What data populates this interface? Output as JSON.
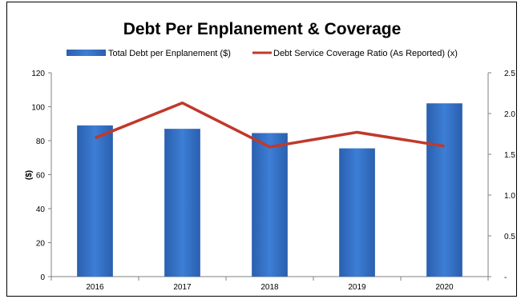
{
  "chart_data": {
    "type": "bar",
    "title": "Debt Per Enplanement & Coverage",
    "categories": [
      "2016",
      "2017",
      "2018",
      "2019",
      "2020"
    ],
    "series": [
      {
        "name": "Total Debt per Enplanement ($)",
        "type": "bar",
        "axis": "left",
        "color": "#2f6cc0",
        "values": [
          89,
          87,
          84.5,
          75.5,
          102
        ]
      },
      {
        "name": "Debt Service Coverage Ratio (As Reported) (x)",
        "type": "line",
        "axis": "right",
        "color": "#c0392b",
        "values": [
          1.7,
          2.13,
          1.59,
          1.77,
          1.6
        ]
      }
    ],
    "ylabel": "($)",
    "ylim": [
      0,
      120
    ],
    "yticks": [
      "0",
      "20",
      "40",
      "60",
      "80",
      "100",
      "120"
    ],
    "y2lim": [
      0,
      2.5
    ],
    "y2ticks": [
      "-",
      "0.5",
      "1.0",
      "1.5",
      "2.0",
      "2.5"
    ],
    "legend": "top",
    "grid": false
  }
}
